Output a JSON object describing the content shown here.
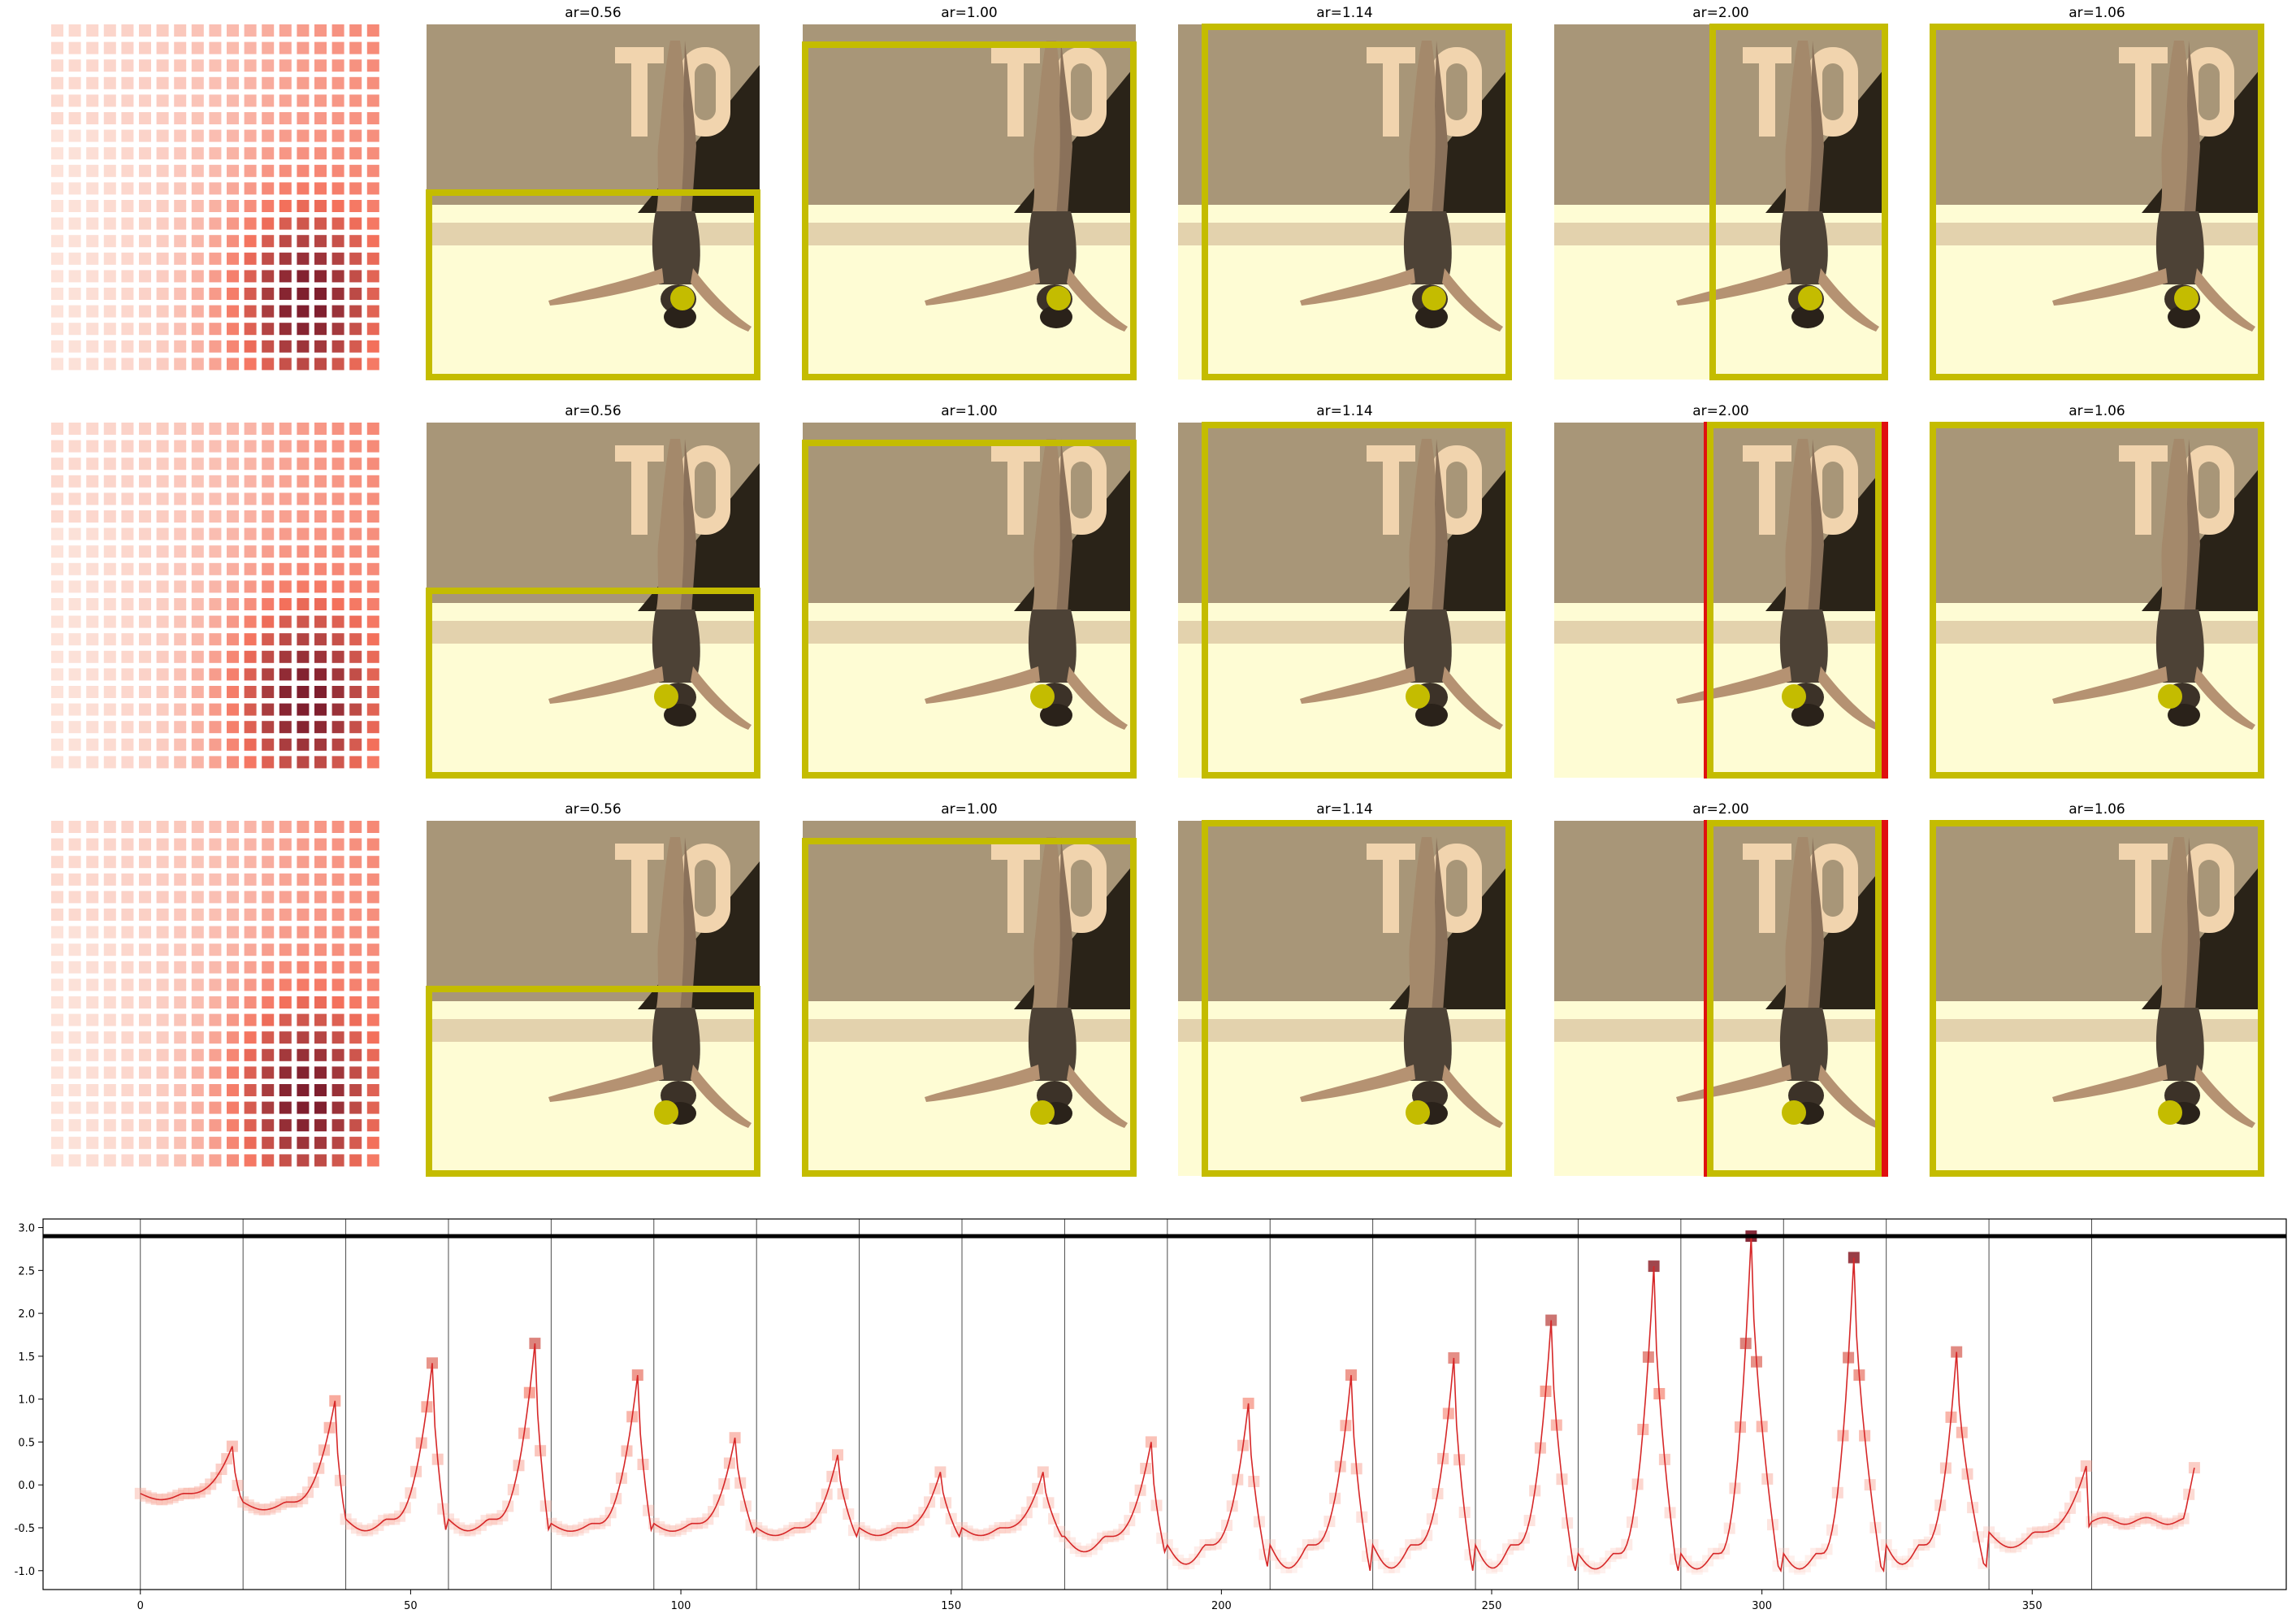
{
  "panel_titles": [
    "ar=0.56",
    "ar=1.00",
    "ar=1.14",
    "ar=2.00",
    "ar=1.06"
  ],
  "image_subject": "upside-down gymnast in handstand on floor, sepia tone, 'TO' letters on banner",
  "colors": {
    "box": "#c4bc00",
    "dot": "#c4bc00",
    "red_bar": "#e01010",
    "heat_low": "#fde9e1",
    "heat_high": "#7f1f2e",
    "line": "#d62728",
    "bg_wall": "#a89678",
    "bg_floor": "#fefcd4"
  },
  "chart_data": {
    "type": "line",
    "title": "",
    "xlabel": "",
    "ylabel": "",
    "xlim": [
      -18,
      397
    ],
    "ylim": [
      -1.22,
      3.1
    ],
    "xticks": [
      0,
      50,
      100,
      150,
      200,
      250,
      300,
      350
    ],
    "yticks": [
      -1.0,
      -0.5,
      0.0,
      0.5,
      1.0,
      1.5,
      2.0,
      2.5,
      3.0
    ],
    "hline": 2.9,
    "vlines": [
      0,
      19,
      38,
      57,
      76,
      95,
      114,
      133,
      152,
      171,
      190,
      209,
      228,
      247,
      266,
      285,
      304,
      323,
      342,
      361
    ],
    "peaks": [
      {
        "x": 0,
        "base": -0.1,
        "min": -0.18,
        "peak": 0.45,
        "px": 17
      },
      {
        "x": 19,
        "base": -0.2,
        "min": -0.3,
        "peak": 0.98,
        "px": 36
      },
      {
        "x": 38,
        "base": -0.4,
        "min": -0.55,
        "peak": 1.42,
        "px": 54
      },
      {
        "x": 57,
        "base": -0.4,
        "min": -0.55,
        "peak": 1.65,
        "px": 73
      },
      {
        "x": 76,
        "base": -0.45,
        "min": -0.55,
        "peak": 1.28,
        "px": 92
      },
      {
        "x": 95,
        "base": -0.45,
        "min": -0.55,
        "peak": 0.55,
        "px": 110
      },
      {
        "x": 114,
        "base": -0.5,
        "min": -0.6,
        "peak": 0.35,
        "px": 129
      },
      {
        "x": 133,
        "base": -0.5,
        "min": -0.6,
        "peak": 0.15,
        "px": 148
      },
      {
        "x": 152,
        "base": -0.5,
        "min": -0.6,
        "peak": 0.15,
        "px": 167
      },
      {
        "x": 171,
        "base": -0.6,
        "min": -0.8,
        "peak": 0.5,
        "px": 187
      },
      {
        "x": 190,
        "base": -0.7,
        "min": -0.95,
        "peak": 0.95,
        "px": 205
      },
      {
        "x": 209,
        "base": -0.7,
        "min": -1.0,
        "peak": 1.28,
        "px": 224
      },
      {
        "x": 228,
        "base": -0.7,
        "min": -1.0,
        "peak": 1.48,
        "px": 243
      },
      {
        "x": 247,
        "base": -0.7,
        "min": -1.0,
        "peak": 1.92,
        "px": 261
      },
      {
        "x": 266,
        "base": -0.8,
        "min": -1.0,
        "peak": 2.55,
        "px": 280
      },
      {
        "x": 285,
        "base": -0.8,
        "min": -1.0,
        "peak": 2.9,
        "px": 298
      },
      {
        "x": 304,
        "base": -0.8,
        "min": -1.0,
        "peak": 2.65,
        "px": 317
      },
      {
        "x": 323,
        "base": -0.7,
        "min": -0.95,
        "peak": 1.55,
        "px": 336
      },
      {
        "x": 342,
        "base": -0.55,
        "min": -0.75,
        "peak": 0.22,
        "px": 360
      }
    ],
    "tail": {
      "x_start": 361,
      "x_end": 380,
      "level": -0.42,
      "end_value": 0.2
    }
  }
}
